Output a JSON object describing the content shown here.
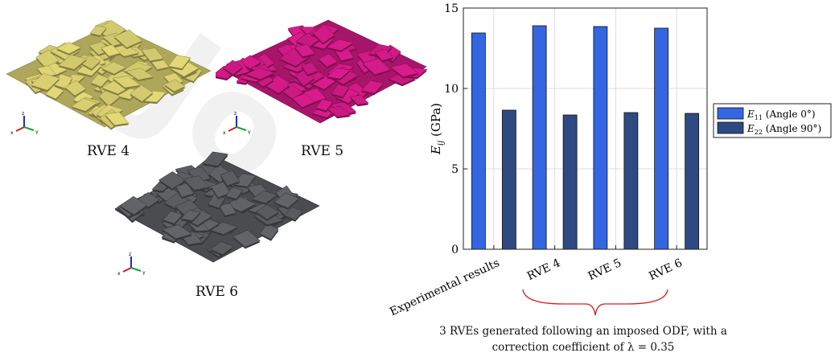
{
  "rve_panels": [
    {
      "label": "RVE 4",
      "color": "#d9cf72",
      "edge": "#8f8740"
    },
    {
      "label": "RVE 5",
      "color": "#d11a86",
      "edge": "#7a0d4c"
    },
    {
      "label": "RVE 6",
      "color": "#5d5f63",
      "edge": "#2e2f31"
    }
  ],
  "triad": {
    "z": "z",
    "x": "x",
    "y": "Y"
  },
  "caption": {
    "line1": "3 RVEs generated following an imposed ODF, with a",
    "line2": "correction coefficient of λ = 0.35"
  },
  "watermark": "Jo",
  "chart_data": {
    "type": "bar",
    "categories": [
      "Experimental results",
      "RVE 4",
      "RVE 5",
      "RVE 6"
    ],
    "series": [
      {
        "name": "E11 (Angle 0°)",
        "values": [
          13.45,
          13.9,
          13.85,
          13.75
        ],
        "color": "#3366e0"
      },
      {
        "name": "E22 (Angle 90°)",
        "values": [
          8.65,
          8.35,
          8.5,
          8.45
        ],
        "color": "#2f4a82"
      }
    ],
    "ylabel": "Eij (GPa)",
    "ylim": [
      0,
      15
    ],
    "yticks": [
      0,
      5,
      10,
      15
    ],
    "grid": true,
    "legend": "right",
    "legend_text": [
      {
        "main": "E",
        "sub": "11",
        "rest": " (Angle 0°)"
      },
      {
        "main": "E",
        "sub": "22",
        "rest": " (Angle 90°)"
      }
    ],
    "ylabel_text": {
      "main": "E",
      "sub": "ij",
      "rest": " (GPa)"
    }
  }
}
